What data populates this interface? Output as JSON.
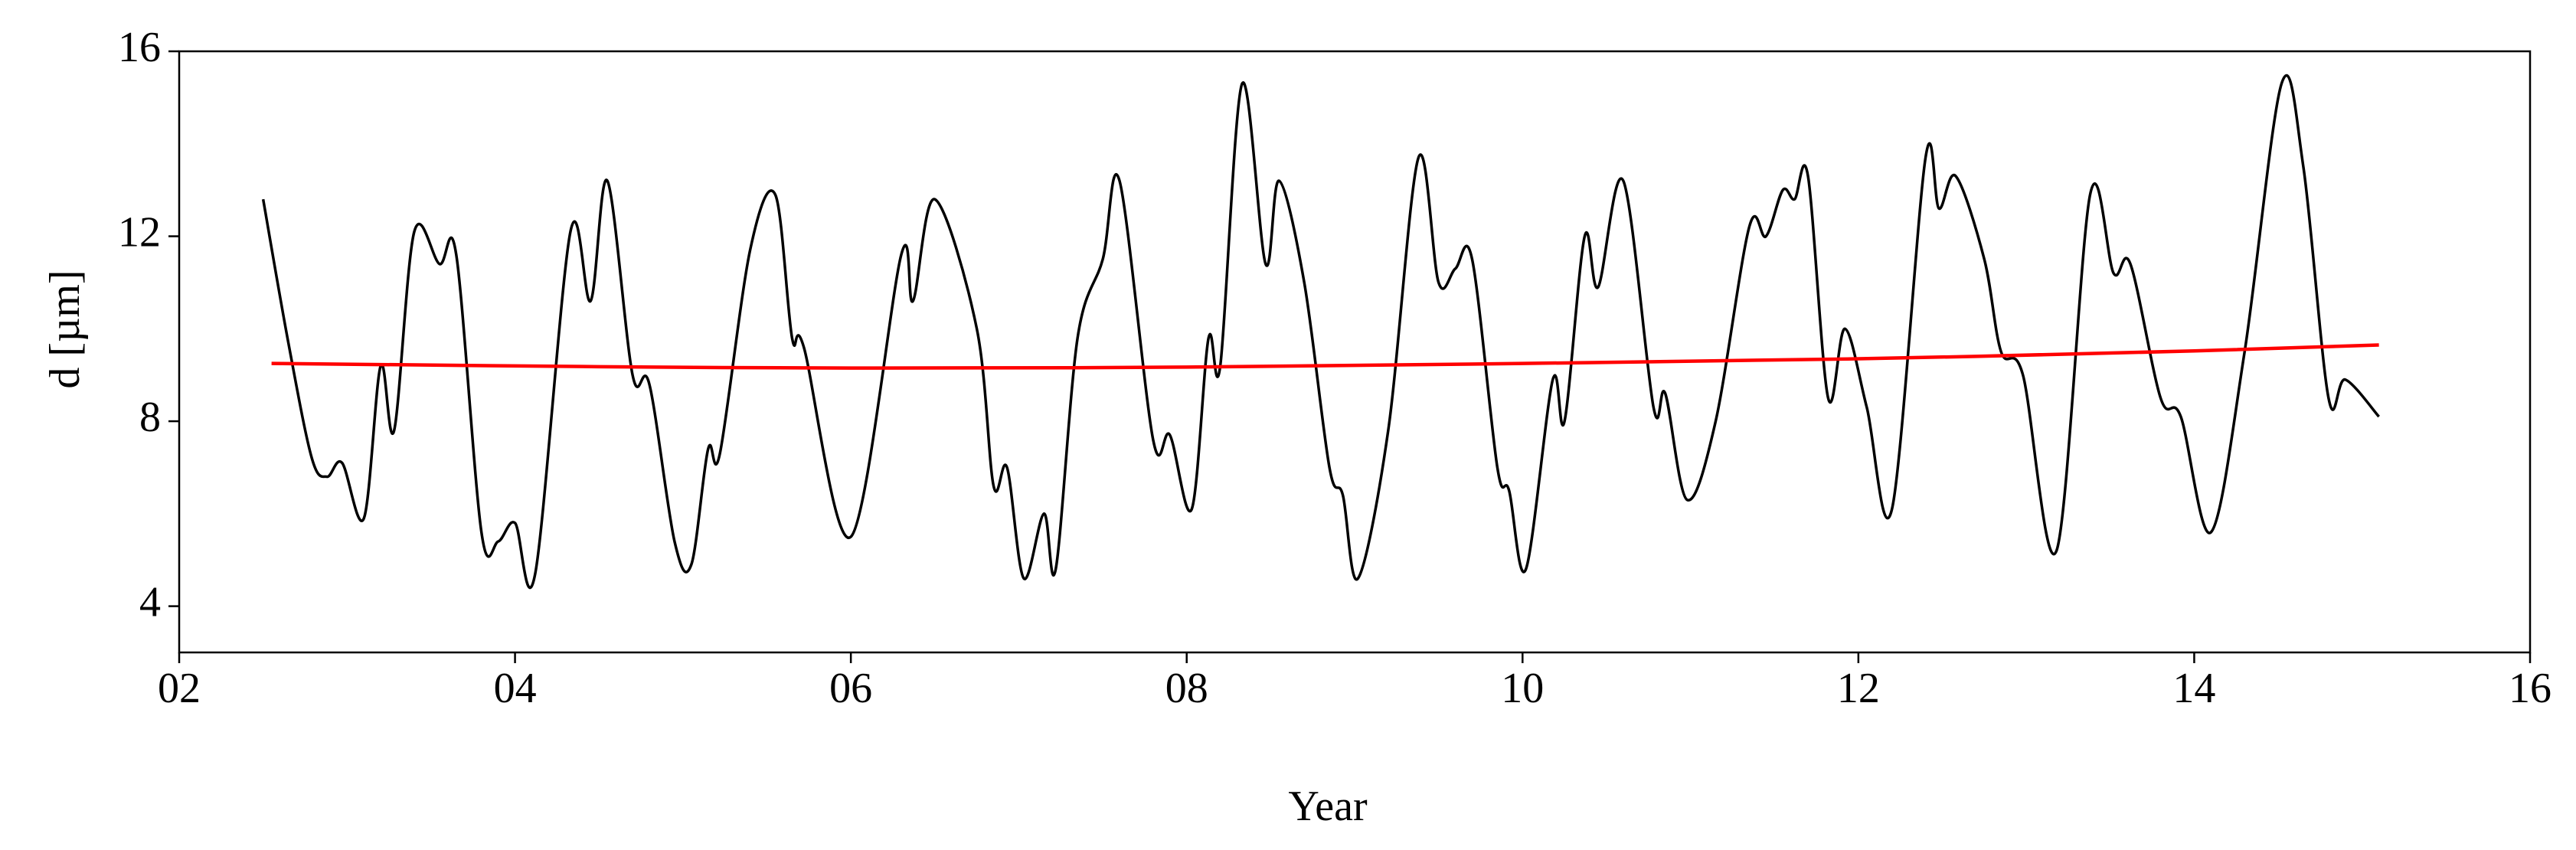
{
  "chart_data": {
    "type": "line",
    "x_label": "Year",
    "y_label": "d [µm]",
    "xlim": [
      2,
      16
    ],
    "xticks": [
      {
        "value": 2,
        "label": "02"
      },
      {
        "value": 4,
        "label": "04"
      },
      {
        "value": 6,
        "label": "06"
      },
      {
        "value": 8,
        "label": "08"
      },
      10,
      12,
      14,
      16
    ],
    "ylim": [
      3,
      16
    ],
    "yticks": [
      4,
      8,
      12,
      16
    ],
    "series": [
      {
        "color": "#000000",
        "x": [
          2.5,
          2.65,
          2.79,
          2.88,
          2.97,
          3.1,
          3.2,
          3.28,
          3.4,
          3.55,
          3.65,
          3.8,
          3.9,
          4.0,
          4.12,
          4.33,
          4.45,
          4.55,
          4.7,
          4.8,
          4.95,
          5.05,
          5.15,
          5.22,
          5.4,
          5.55,
          5.65,
          5.72,
          6.0,
          6.3,
          6.37,
          6.5,
          6.75,
          6.85,
          6.93,
          7.03,
          7.15,
          7.22,
          7.35,
          7.5,
          7.6,
          7.8,
          7.9,
          8.03,
          8.13,
          8.2,
          8.33,
          8.47,
          8.55,
          8.7,
          8.85,
          8.93,
          9.02,
          9.2,
          9.38,
          9.5,
          9.6,
          9.7,
          9.85,
          9.92,
          10.02,
          10.18,
          10.25,
          10.37,
          10.45,
          10.6,
          10.78,
          10.85,
          10.98,
          11.15,
          11.35,
          11.45,
          11.55,
          11.62,
          11.7,
          11.82,
          11.92,
          12.05,
          12.2,
          12.4,
          12.48,
          12.58,
          12.75,
          12.85,
          12.98,
          13.18,
          13.38,
          13.52,
          13.62,
          13.8,
          13.92,
          14.1,
          14.3,
          14.52,
          14.65,
          14.8,
          14.9,
          15.1
        ],
        "values": [
          12.8,
          9.7,
          7.2,
          6.8,
          7.1,
          5.9,
          9.2,
          7.8,
          12.1,
          11.4,
          11.6,
          5.6,
          5.4,
          5.8,
          4.7,
          12.1,
          10.6,
          13.2,
          9.0,
          8.8,
          5.4,
          4.9,
          7.4,
          7.3,
          11.7,
          12.9,
          9.8,
          9.6,
          5.5,
          11.6,
          10.6,
          12.8,
          10.0,
          6.6,
          7.0,
          4.6,
          6.0,
          4.8,
          9.8,
          11.5,
          13.2,
          7.6,
          7.7,
          6.1,
          9.8,
          9.2,
          15.3,
          11.4,
          13.2,
          11.0,
          7.0,
          6.4,
          4.6,
          7.8,
          13.7,
          11.0,
          11.3,
          11.5,
          7.0,
          6.5,
          4.8,
          8.9,
          8.0,
          12.0,
          10.9,
          13.2,
          8.3,
          8.6,
          6.3,
          8.0,
          12.2,
          12.0,
          13.0,
          12.8,
          13.3,
          8.5,
          10.0,
          8.3,
          6.1,
          13.7,
          12.6,
          13.3,
          11.5,
          9.5,
          9.0,
          5.2,
          12.9,
          11.2,
          11.4,
          8.5,
          8.1,
          5.6,
          9.5,
          15.3,
          13.5,
          8.5,
          8.9,
          8.1
        ]
      },
      {
        "color": "#ff0000",
        "x": [
          2.55,
          4.5,
          6.0,
          8.0,
          10.0,
          12.0,
          14.0,
          15.1
        ],
        "values": [
          9.25,
          9.18,
          9.15,
          9.17,
          9.25,
          9.35,
          9.52,
          9.65
        ]
      }
    ]
  }
}
